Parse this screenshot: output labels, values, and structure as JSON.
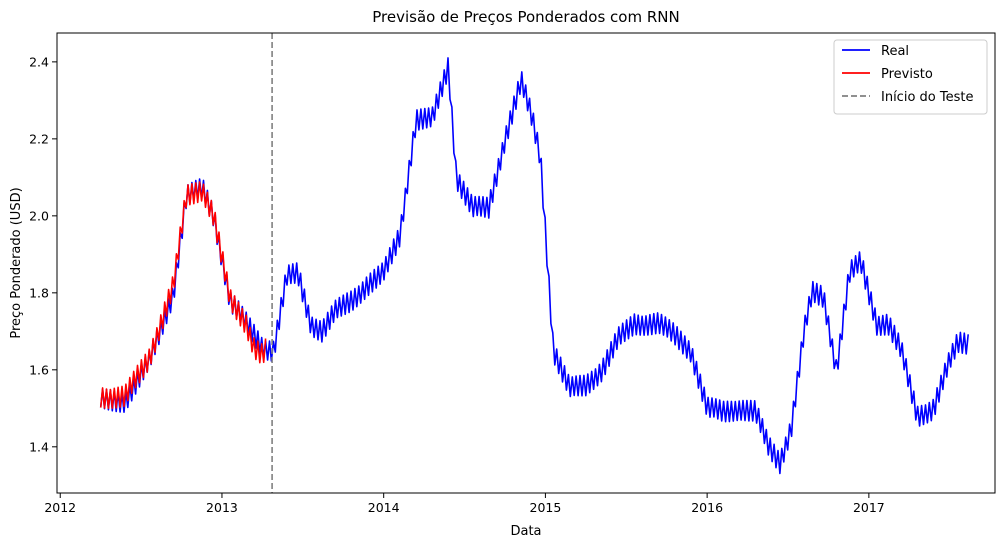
{
  "chart_data": {
    "type": "line",
    "title": "Previsão de Preços Ponderados com RNN",
    "xlabel": "Data",
    "ylabel": "Preço Ponderado (USD)",
    "xlim": [
      2011.98,
      2017.78
    ],
    "ylim": [
      1.28,
      2.475
    ],
    "x_ticks": [
      {
        "value": 2012,
        "label": "2012"
      },
      {
        "value": 2013,
        "label": "2013"
      },
      {
        "value": 2014,
        "label": "2014"
      },
      {
        "value": 2015,
        "label": "2015"
      },
      {
        "value": 2016,
        "label": "2016"
      },
      {
        "value": 2017,
        "label": "2017"
      }
    ],
    "y_ticks": [
      {
        "value": 1.4,
        "label": "1.4"
      },
      {
        "value": 1.6,
        "label": "1.6"
      },
      {
        "value": 1.8,
        "label": "1.8"
      },
      {
        "value": 2.0,
        "label": "2.0"
      },
      {
        "value": 2.2,
        "label": "2.2"
      },
      {
        "value": 2.4,
        "label": "2.4"
      }
    ],
    "grid": false,
    "legend_position": "top-right",
    "series": [
      {
        "name": "Real",
        "color": "#0000ff",
        "style": "solid",
        "oscillation_amplitude": 0.03,
        "x": [
          2012.25,
          2012.4,
          2012.55,
          2012.7,
          2012.78,
          2012.88,
          2012.95,
          2013.05,
          2013.15,
          2013.25,
          2013.32,
          2013.4,
          2013.47,
          2013.55,
          2013.62,
          2013.7,
          2013.8,
          2013.9,
          2014.0,
          2014.1,
          2014.2,
          2014.3,
          2014.4,
          2014.45,
          2014.55,
          2014.65,
          2014.75,
          2014.85,
          2014.92,
          2014.97,
          2015.05,
          2015.15,
          2015.25,
          2015.35,
          2015.45,
          2015.55,
          2015.7,
          2015.8,
          2015.9,
          2016.0,
          2016.1,
          2016.2,
          2016.3,
          2016.38,
          2016.45,
          2016.52,
          2016.6,
          2016.65,
          2016.72,
          2016.8,
          2016.88,
          2016.95,
          2017.05,
          2017.12,
          2017.2,
          2017.3,
          2017.4,
          2017.48,
          2017.55,
          2017.62
        ],
        "values": [
          1.52,
          1.52,
          1.62,
          1.8,
          2.05,
          2.07,
          2.0,
          1.78,
          1.72,
          1.66,
          1.65,
          1.84,
          1.85,
          1.72,
          1.7,
          1.75,
          1.78,
          1.82,
          1.85,
          1.95,
          2.25,
          2.25,
          2.39,
          2.1,
          2.02,
          2.02,
          2.2,
          2.35,
          2.25,
          2.15,
          1.65,
          1.55,
          1.56,
          1.6,
          1.68,
          1.72,
          1.72,
          1.69,
          1.65,
          1.5,
          1.49,
          1.5,
          1.49,
          1.4,
          1.36,
          1.45,
          1.7,
          1.8,
          1.79,
          1.6,
          1.85,
          1.88,
          1.72,
          1.72,
          1.65,
          1.48,
          1.5,
          1.6,
          1.67,
          1.67
        ]
      },
      {
        "name": "Previsto",
        "color": "#ff0000",
        "style": "solid",
        "oscillation_amplitude": 0.03,
        "x": [
          2012.25,
          2012.4,
          2012.55,
          2012.7,
          2012.78,
          2012.88,
          2012.95,
          2013.05,
          2013.15,
          2013.2,
          2013.25,
          2013.28
        ],
        "values": [
          1.53,
          1.53,
          1.63,
          1.82,
          2.05,
          2.07,
          2.0,
          1.78,
          1.72,
          1.66,
          1.64,
          1.66
        ]
      }
    ],
    "vline": {
      "name": "Início do Teste",
      "x": 2013.31,
      "color": "#808080",
      "style": "dashed"
    }
  }
}
